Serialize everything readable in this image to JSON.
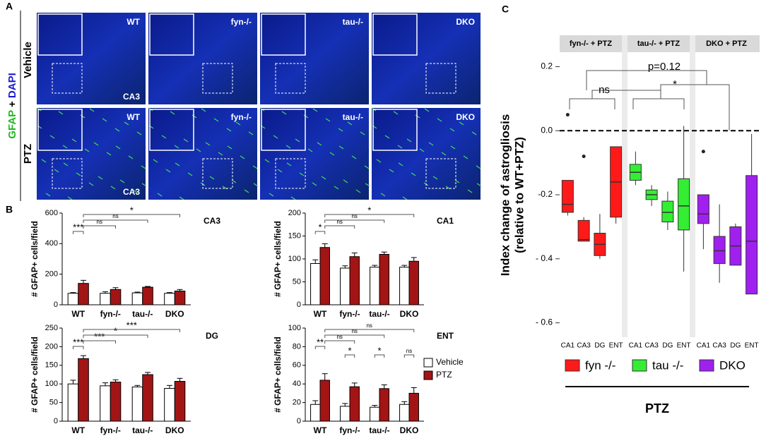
{
  "panel_labels": [
    "A",
    "B",
    "C"
  ],
  "images": {
    "columns": [
      "WT",
      "fyn-/-",
      "tau-/-",
      "DKO"
    ],
    "rows": [
      "Vehicle",
      "PTZ"
    ],
    "stain": [
      "GFAP",
      "+",
      "DAPI"
    ],
    "region": "CA3"
  },
  "bar_legend": [
    {
      "name": "Vehicle",
      "color": "#ffffff"
    },
    {
      "name": "PTZ",
      "color": "#a31515"
    }
  ],
  "chart_data": [
    {
      "type": "bar",
      "title": "CA3",
      "ylabel": "# GFAP+ cells/field",
      "categories": [
        "WT",
        "fyn-/-",
        "tau-/-",
        "DKO"
      ],
      "series": [
        {
          "values": [
            75,
            75,
            78,
            75
          ],
          "errors": [
            5,
            10,
            5,
            5
          ]
        },
        {
          "values": [
            140,
            100,
            115,
            90
          ],
          "errors": [
            20,
            12,
            5,
            10
          ]
        }
      ],
      "ylim": [
        0,
        600
      ],
      "yticks": [
        0,
        200,
        400,
        600
      ],
      "annotations": [
        "***",
        "ns",
        "ns",
        "*"
      ]
    },
    {
      "type": "bar",
      "title": "CA1",
      "ylabel": "# GFAP+ cells/field",
      "categories": [
        "WT",
        "fyn-/-",
        "tau-/-",
        "DKO"
      ],
      "series": [
        {
          "values": [
            90,
            80,
            82,
            82
          ],
          "errors": [
            8,
            5,
            4,
            4
          ]
        },
        {
          "values": [
            125,
            105,
            110,
            95
          ],
          "errors": [
            8,
            8,
            5,
            8
          ]
        }
      ],
      "ylim": [
        0,
        200
      ],
      "yticks": [
        0,
        50,
        100,
        150,
        200
      ],
      "annotations": [
        "*",
        "ns",
        "ns",
        "*"
      ]
    },
    {
      "type": "bar",
      "title": "DG",
      "ylabel": "# GFAP+ cells/field",
      "categories": [
        "WT",
        "fyn-/-",
        "tau-/-",
        "DKO"
      ],
      "series": [
        {
          "values": [
            100,
            95,
            92,
            88
          ],
          "errors": [
            10,
            8,
            4,
            8
          ]
        },
        {
          "values": [
            168,
            105,
            125,
            107
          ],
          "errors": [
            8,
            6,
            6,
            8
          ]
        }
      ],
      "ylim": [
        0,
        250
      ],
      "yticks": [
        0,
        50,
        100,
        150,
        200,
        250
      ],
      "annotations": [
        "***",
        "***",
        "*",
        "***"
      ]
    },
    {
      "type": "bar",
      "title": "ENT",
      "ylabel": "# GFAP+ cells/field",
      "categories": [
        "WT",
        "fyn-/-",
        "tau-/-",
        "DKO"
      ],
      "series": [
        {
          "values": [
            18,
            16,
            15,
            18
          ],
          "errors": [
            4,
            3,
            2,
            3
          ]
        },
        {
          "values": [
            44,
            37,
            35,
            30
          ],
          "errors": [
            7,
            4,
            4,
            6
          ]
        }
      ],
      "ylim": [
        0,
        100
      ],
      "yticks": [
        0,
        20,
        40,
        60,
        80,
        100
      ],
      "annotations": [
        "**",
        "ns",
        "ns",
        "ns",
        "*",
        "*",
        "ns"
      ]
    },
    {
      "type": "box",
      "ylabel": [
        "Index change of astrogliosis",
        "(relative to WT+PTZ)"
      ],
      "xlabel": "PTZ",
      "categories": [
        "CA1",
        "CA3",
        "DG",
        "ENT"
      ],
      "ylim": [
        -0.645,
        0.243
      ],
      "yticks": [
        {
          "value": -0.6,
          "label": "- 0.6"
        },
        {
          "value": -0.4,
          "label": "- 0.4"
        },
        -0.2,
        {
          "value": 0,
          "label": "0.0"
        },
        0.2
      ],
      "refline": 0,
      "annotations": [
        "ns",
        "*",
        "p=0.12"
      ],
      "facets": [
        {
          "label": "fyn-/- + PTZ",
          "name": "fyn -/-",
          "color": "#ff1a1a",
          "boxes": [
            {
              "low": -0.265,
              "q1": -0.255,
              "median": -0.23,
              "q3": -0.155,
              "high": -0.155,
              "outliers": [
                0.05
              ]
            },
            {
              "low": -0.345,
              "q1": -0.345,
              "median": -0.34,
              "q3": -0.28,
              "high": -0.27,
              "outliers": [
                -0.08
              ]
            },
            {
              "low": -0.4,
              "q1": -0.39,
              "median": -0.355,
              "q3": -0.32,
              "high": -0.26,
              "outliers": []
            },
            {
              "low": -0.29,
              "q1": -0.27,
              "median": -0.16,
              "q3": -0.05,
              "high": -0.05,
              "outliers": []
            }
          ]
        },
        {
          "label": "tau-/- + PTZ",
          "name": "tau -/-",
          "color": "#33ee33",
          "boxes": [
            {
              "low": -0.17,
              "q1": -0.155,
              "median": -0.13,
              "q3": -0.105,
              "high": -0.065,
              "outliers": []
            },
            {
              "low": -0.235,
              "q1": -0.215,
              "median": -0.2,
              "q3": -0.185,
              "high": -0.17,
              "outliers": []
            },
            {
              "low": -0.31,
              "q1": -0.285,
              "median": -0.255,
              "q3": -0.22,
              "high": -0.19,
              "outliers": []
            },
            {
              "low": -0.44,
              "q1": -0.31,
              "median": -0.235,
              "q3": -0.15,
              "high": 0.015,
              "outliers": []
            }
          ]
        },
        {
          "label": "DKO + PTZ",
          "name": "DKO",
          "color": "#a020f0",
          "boxes": [
            {
              "low": -0.37,
              "q1": -0.29,
              "median": -0.26,
              "q3": -0.2,
              "high": -0.2,
              "outliers": [
                -0.065
              ]
            },
            {
              "low": -0.475,
              "q1": -0.415,
              "median": -0.375,
              "q3": -0.33,
              "high": -0.23,
              "outliers": []
            },
            {
              "low": -0.42,
              "q1": -0.42,
              "median": -0.36,
              "q3": -0.3,
              "high": -0.29,
              "outliers": []
            },
            {
              "low": -0.51,
              "q1": -0.51,
              "median": -0.345,
              "q3": -0.14,
              "high": -0.01,
              "outliers": []
            }
          ]
        }
      ]
    }
  ]
}
